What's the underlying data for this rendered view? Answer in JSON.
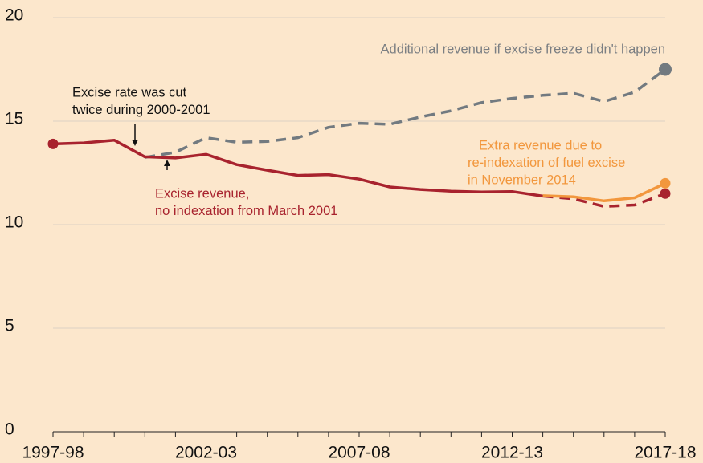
{
  "chart_data": {
    "type": "line",
    "categories": [
      "1997-98",
      null,
      null,
      null,
      null,
      "2002-03",
      null,
      null,
      null,
      null,
      "2007-08",
      null,
      null,
      null,
      null,
      "2012-13",
      null,
      null,
      null,
      null,
      "2017-18"
    ],
    "ylim": [
      0,
      20
    ],
    "yticks": [
      0,
      5,
      10,
      15,
      20
    ],
    "grid": true,
    "series": [
      {
        "color": "#727a80",
        "dash": true,
        "markers": [
          20
        ],
        "values": [
          null,
          null,
          null,
          13.25,
          13.5,
          14.2,
          13.98,
          14.02,
          14.2,
          14.7,
          14.9,
          14.85,
          15.2,
          15.5,
          15.9,
          16.1,
          16.25,
          16.35,
          15.95,
          16.4,
          17.5
        ]
      },
      {
        "color": "#a8232e",
        "dash": false,
        "markers": [
          0
        ],
        "values": [
          13.9,
          13.95,
          14.08,
          13.28,
          13.22,
          13.4,
          12.9,
          12.63,
          12.38,
          12.42,
          12.2,
          11.82,
          11.7,
          11.62,
          11.58,
          11.6,
          11.38,
          null,
          null,
          null,
          null
        ]
      },
      {
        "color": "#a8232e",
        "dash": true,
        "markers": [
          20
        ],
        "values": [
          null,
          null,
          null,
          null,
          null,
          null,
          null,
          null,
          null,
          null,
          null,
          null,
          null,
          null,
          null,
          null,
          11.38,
          11.25,
          10.88,
          10.95,
          11.5
        ]
      },
      {
        "color": "#f2973d",
        "dash": false,
        "markers": [
          20
        ],
        "values": [
          null,
          null,
          null,
          null,
          null,
          null,
          null,
          null,
          null,
          null,
          null,
          null,
          null,
          null,
          null,
          null,
          11.4,
          11.35,
          11.15,
          11.3,
          12.0
        ]
      }
    ],
    "annotations": [
      {
        "color": "#7b7f83",
        "lines": [
          "Additional revenue if excise freeze didn't happen"
        ]
      },
      {
        "color": "#111111",
        "lines": [
          "Excise rate was cut",
          "twice during 2000-2001"
        ]
      },
      {
        "color": "#a8232e",
        "lines": [
          "Excise revenue,",
          "no indexation from March 2001"
        ]
      },
      {
        "color": "#f2973d",
        "lines": [
          "Extra revenue due to",
          "re-indexation of fuel excise",
          "in November 2014"
        ]
      }
    ]
  }
}
